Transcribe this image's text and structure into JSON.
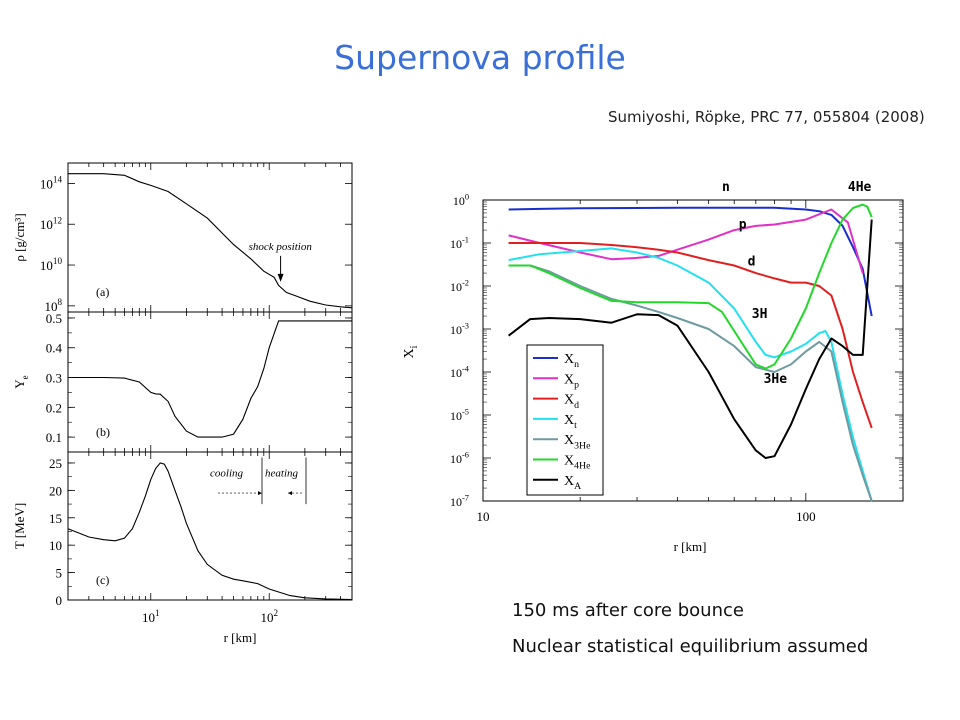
{
  "slide": {
    "title": "Supernova profile",
    "citation": "Sumiyoshi, Röpke, PRC 77, 055804 (2008)",
    "captions": [
      "150 ms after core bounce",
      "Nuclear statistical equilibrium assumed"
    ]
  },
  "chart_data": [
    {
      "type": "line",
      "panel": "(a)",
      "ylabel": "ρ [g/cm³]",
      "yscale": "log",
      "xscale": "log",
      "xlim": [
        2,
        500
      ],
      "ylim": [
        50000000,
        1000000000000000
      ],
      "yticks": [
        {
          "value": 100000000,
          "label": "10",
          "exp": "8"
        },
        {
          "value": 10000000000,
          "label": "10",
          "exp": "10"
        },
        {
          "value": 1000000000000,
          "label": "10",
          "exp": "12"
        },
        {
          "value": 100000000000000,
          "label": "10",
          "exp": "14"
        }
      ],
      "annotation": "shock position",
      "annotation_x": 120,
      "annotation_y": 1500000000,
      "series": [
        {
          "name": "",
          "x": [
            2,
            4,
            6,
            8,
            10,
            14,
            20,
            30,
            50,
            70,
            90,
            110,
            120,
            140,
            170,
            220,
            300,
            400,
            500
          ],
          "y": [
            300000000000000,
            300000000000000,
            250000000000000,
            120000000000000,
            80000000000000,
            40000000000000,
            10000000000000,
            2000000000000,
            100000000000,
            20000000000,
            5000000000,
            2500000000,
            1000000000,
            450000000,
            300000000,
            170000000,
            110000000,
            90000000,
            80000000
          ]
        }
      ]
    },
    {
      "type": "line",
      "panel": "(b)",
      "ylabel": "Y",
      "ylabel_sub": "e",
      "xscale": "log",
      "xlim": [
        2,
        500
      ],
      "ylim": [
        0.05,
        0.52
      ],
      "yticks": [
        {
          "value": 0.1,
          "label": "0.1"
        },
        {
          "value": 0.2,
          "label": "0.2"
        },
        {
          "value": 0.3,
          "label": "0.3"
        },
        {
          "value": 0.4,
          "label": "0.4"
        },
        {
          "value": 0.5,
          "label": "0.5"
        }
      ],
      "series": [
        {
          "name": "",
          "x": [
            2,
            4,
            6,
            8,
            10,
            11,
            12,
            14,
            16,
            20,
            25,
            30,
            40,
            50,
            60,
            70,
            80,
            90,
            100,
            120,
            150,
            200,
            300,
            500
          ],
          "y": [
            0.3,
            0.3,
            0.298,
            0.285,
            0.25,
            0.245,
            0.244,
            0.22,
            0.17,
            0.12,
            0.1,
            0.1,
            0.1,
            0.11,
            0.16,
            0.23,
            0.27,
            0.33,
            0.4,
            0.49,
            0.49,
            0.49,
            0.49,
            0.49
          ]
        }
      ]
    },
    {
      "type": "line",
      "panel": "(c)",
      "ylabel": "T [MeV]",
      "xlabel": "r [km]",
      "xscale": "log",
      "xlim": [
        2,
        500
      ],
      "ylim": [
        0,
        27
      ],
      "xticks": [
        {
          "value": 10,
          "label": "10",
          "exp": "1"
        },
        {
          "value": 100,
          "label": "10",
          "exp": "2"
        }
      ],
      "yticks": [
        {
          "value": 0,
          "label": "0"
        },
        {
          "value": 5,
          "label": "5"
        },
        {
          "value": 10,
          "label": "10"
        },
        {
          "value": 15,
          "label": "15"
        },
        {
          "value": 20,
          "label": "20"
        },
        {
          "value": 25,
          "label": "25"
        }
      ],
      "annotations": [
        "cooling",
        "heating"
      ],
      "series": [
        {
          "name": "",
          "x": [
            2,
            3,
            4,
            5,
            6,
            7,
            8,
            9,
            10,
            11,
            12,
            13,
            14,
            16,
            18,
            20,
            25,
            30,
            40,
            50,
            60,
            80,
            100,
            150,
            200,
            300,
            500
          ],
          "y": [
            13,
            11.5,
            11,
            10.8,
            11.3,
            13,
            16,
            19,
            22,
            24,
            25,
            24.8,
            23.5,
            20,
            17,
            14,
            9,
            6.5,
            4.5,
            3.8,
            3.5,
            3,
            2,
            0.8,
            0.4,
            0.2,
            0.1
          ]
        }
      ]
    },
    {
      "type": "line",
      "ylabel": "X",
      "ylabel_sub": "i",
      "xlabel": "r [km]",
      "xscale": "log",
      "yscale": "log",
      "xlim": [
        10,
        200
      ],
      "ylim": [
        1e-07,
        1
      ],
      "xticks": [
        {
          "value": 10,
          "label": "10"
        },
        {
          "value": 100,
          "label": "100"
        }
      ],
      "yticks": [
        {
          "value": 1,
          "label": "10",
          "exp": "0"
        },
        {
          "value": 0.1,
          "label": "10",
          "exp": "-1"
        },
        {
          "value": 0.01,
          "label": "10",
          "exp": "-2"
        },
        {
          "value": 0.001,
          "label": "10",
          "exp": "-3"
        },
        {
          "value": 0.0001,
          "label": "10",
          "exp": "-4"
        },
        {
          "value": 1e-05,
          "label": "10",
          "exp": "-5"
        },
        {
          "value": 1e-06,
          "label": "10",
          "exp": "-6"
        },
        {
          "value": 1e-07,
          "label": "10",
          "exp": "-7"
        }
      ],
      "legend": [
        {
          "label": "X",
          "sub": "n",
          "color": "#1a2ecc"
        },
        {
          "label": "X",
          "sub": "p",
          "color": "#e030c8"
        },
        {
          "label": "X",
          "sub": "d",
          "color": "#e02020"
        },
        {
          "label": "X",
          "sub": "t",
          "color": "#22e0ee"
        },
        {
          "label": "X",
          "sub": "3He",
          "color": "#6e9aa0"
        },
        {
          "label": "X",
          "sub": "4He",
          "color": "#22d82a"
        },
        {
          "label": "X",
          "sub": "A",
          "color": "#000000"
        }
      ],
      "curve_labels": [
        {
          "text": "n",
          "color": "#1a2ecc",
          "x": 55,
          "y": 1.6
        },
        {
          "text": "4He",
          "color": "#22d82a",
          "x": 135,
          "y": 1.6
        },
        {
          "text": "p",
          "color": "#e030c8",
          "x": 62,
          "y": 0.22
        },
        {
          "text": "d",
          "color": "#e02020",
          "x": 66,
          "y": 0.03
        },
        {
          "text": "3H",
          "color": "#22e0ee",
          "x": 68,
          "y": 0.0018
        },
        {
          "text": "3He",
          "color": "#6e9aa0",
          "x": 74,
          "y": 5.5e-05
        }
      ],
      "series": [
        {
          "name": "n",
          "color": "#1a2ecc",
          "x": [
            12,
            15,
            20,
            30,
            40,
            50,
            60,
            80,
            100,
            110,
            120,
            130,
            140,
            150,
            160
          ],
          "y": [
            0.6,
            0.62,
            0.64,
            0.65,
            0.66,
            0.66,
            0.66,
            0.66,
            0.6,
            0.55,
            0.45,
            0.25,
            0.08,
            0.025,
            0.002
          ]
        },
        {
          "name": "p",
          "color": "#e030c8",
          "x": [
            12,
            15,
            20,
            25,
            30,
            35,
            40,
            50,
            60,
            70,
            80,
            100,
            120,
            135,
            150
          ],
          "y": [
            0.15,
            0.1,
            0.06,
            0.042,
            0.045,
            0.05,
            0.07,
            0.12,
            0.2,
            0.25,
            0.27,
            0.35,
            0.6,
            0.3,
            0.02
          ]
        },
        {
          "name": "d",
          "color": "#e02020",
          "x": [
            12,
            15,
            20,
            25,
            30,
            35,
            40,
            50,
            60,
            70,
            80,
            90,
            100,
            110,
            120,
            130,
            140,
            150,
            160
          ],
          "y": [
            0.1,
            0.1,
            0.1,
            0.09,
            0.08,
            0.07,
            0.06,
            0.04,
            0.03,
            0.02,
            0.015,
            0.012,
            0.012,
            0.01,
            0.006,
            0.001,
            0.0001,
            2e-05,
            5e-06
          ]
        },
        {
          "name": "3H",
          "color": "#22e0ee",
          "x": [
            12,
            15,
            20,
            25,
            30,
            35,
            40,
            50,
            60,
            70,
            75,
            80,
            90,
            100,
            110,
            115,
            120,
            130,
            140,
            150,
            160
          ],
          "y": [
            0.04,
            0.055,
            0.065,
            0.075,
            0.06,
            0.045,
            0.03,
            0.012,
            0.003,
            0.0005,
            0.00025,
            0.00022,
            0.0003,
            0.00045,
            0.0008,
            0.0009,
            0.0005,
            3e-05,
            3e-06,
            5e-07,
            1e-07
          ]
        },
        {
          "name": "3He",
          "color": "#6e9aa0",
          "x": [
            12,
            14,
            16,
            20,
            25,
            30,
            35,
            40,
            50,
            60,
            70,
            80,
            90,
            100,
            110,
            120,
            130,
            140,
            150,
            160
          ],
          "y": [
            0.03,
            0.03,
            0.022,
            0.01,
            0.005,
            0.0035,
            0.0025,
            0.0018,
            0.001,
            0.0004,
            0.00013,
            0.0001,
            0.00015,
            0.0003,
            0.0005,
            0.0003,
            2e-05,
            2e-06,
            4e-07,
            1e-07
          ]
        },
        {
          "name": "4He",
          "color": "#22d82a",
          "x": [
            12,
            14,
            16,
            20,
            25,
            30,
            40,
            50,
            55,
            60,
            70,
            75,
            80,
            90,
            100,
            110,
            120,
            130,
            140,
            150,
            155,
            160
          ],
          "y": [
            0.03,
            0.03,
            0.02,
            0.009,
            0.0045,
            0.0042,
            0.0042,
            0.004,
            0.0025,
            0.0009,
            0.00015,
            0.00012,
            0.00015,
            0.0006,
            0.003,
            0.02,
            0.1,
            0.35,
            0.65,
            0.78,
            0.7,
            0.4
          ]
        },
        {
          "name": "A",
          "color": "#000000",
          "x": [
            12,
            14,
            16,
            20,
            25,
            30,
            35,
            40,
            50,
            60,
            70,
            75,
            80,
            90,
            100,
            110,
            120,
            130,
            140,
            150,
            160
          ],
          "y": [
            0.0007,
            0.0017,
            0.0018,
            0.0017,
            0.0014,
            0.0022,
            0.0021,
            0.0012,
            0.0001,
            8e-06,
            1.5e-06,
            1e-06,
            1.1e-06,
            6e-06,
            4e-05,
            0.0002,
            0.0006,
            0.0004,
            0.00025,
            0.00025,
            0.35
          ]
        }
      ]
    }
  ]
}
